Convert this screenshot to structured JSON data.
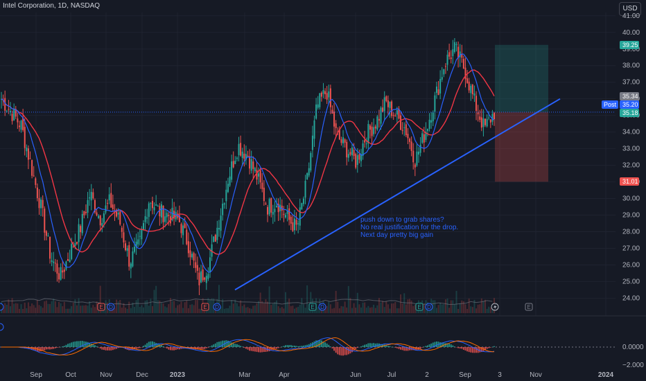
{
  "header": {
    "symbol_title": "Intel Corporation, 1D, NASDAQ",
    "currency_label": "USD"
  },
  "annotation": {
    "lines": [
      "push down to grab shares?",
      "No real justification for the drop.",
      "Next day pretty big gain"
    ]
  },
  "price_tags": {
    "target": "39.25",
    "upper": "35.34",
    "post_label": "Post",
    "post": "35.20",
    "close": "35.18",
    "stop": "31.01"
  },
  "event_markers": [
    {
      "label": "E",
      "kind": "earnings"
    },
    {
      "label": "D",
      "kind": "dividend"
    },
    {
      "label": "E",
      "kind": "earnings"
    },
    {
      "label": "D",
      "kind": "dividend"
    },
    {
      "label": "E",
      "kind": "earnings"
    },
    {
      "label": "D",
      "kind": "dividend"
    },
    {
      "label": "E",
      "kind": "earnings"
    },
    {
      "label": "D",
      "kind": "dividend"
    },
    {
      "label": "E",
      "kind": "earnings-upcoming"
    }
  ],
  "colors": {
    "up": "#26a69a",
    "down": "#ef5350",
    "ma_fast": "#2962ff",
    "ma_slow": "#f23645",
    "trendline": "#2962ff",
    "target_zone": "#26a69a",
    "stop_zone": "#ef5350"
  },
  "chart_data": {
    "type": "candlestick",
    "title": "Intel Corporation, 1D, NASDAQ",
    "y_ticks": [
      "41.00",
      "40.00",
      "39.00",
      "38.00",
      "37.00",
      "36.00",
      "35.00",
      "34.00",
      "33.00",
      "32.00",
      "31.00",
      "30.00",
      "29.00",
      "28.00",
      "27.00",
      "26.00",
      "25.00",
      "24.00"
    ],
    "x_ticks": [
      "Sep",
      "Oct",
      "Nov",
      "Dec",
      "2023",
      "Mar",
      "Apr",
      "Jun",
      "Jul",
      "2",
      "Sep",
      "3",
      "Nov",
      "2024"
    ],
    "ylim": [
      23.6,
      41.2
    ],
    "macd_ticks": [
      "0.0000",
      "−2.000"
    ],
    "trendline": {
      "start": {
        "date": "Feb 2023",
        "price": 24.5
      },
      "end": {
        "date": "Oct 2023",
        "price": 36.0
      }
    },
    "position": {
      "entry": 35.2,
      "target": 39.25,
      "stop": 31.01
    },
    "price_path": [
      [
        "Aug 2022",
        36.0
      ],
      [
        "Aug 2022",
        35.2
      ],
      [
        "Sep 2022",
        34.4
      ],
      [
        "Sep 2022",
        32.0
      ],
      [
        "Sep 2022",
        29.5
      ],
      [
        "Oct 2022",
        26.5
      ],
      [
        "Oct 2022",
        25.3
      ],
      [
        "Oct 2022",
        26.8
      ],
      [
        "Nov 2022",
        28.2
      ],
      [
        "Nov 2022",
        30.3
      ],
      [
        "Nov 2022",
        28.8
      ],
      [
        "Dec 2022",
        29.8
      ],
      [
        "Dec 2022",
        28.6
      ],
      [
        "Dec 2022",
        26.2
      ],
      [
        "Jan 2023",
        27.2
      ],
      [
        "Jan 2023",
        30.0
      ],
      [
        "Jan 2023",
        29.2
      ],
      [
        "Feb 2023",
        29.0
      ],
      [
        "Feb 2023",
        28.7
      ],
      [
        "Feb 2023",
        27.2
      ],
      [
        "Mar 2023",
        25.0
      ],
      [
        "Mar 2023",
        26.0
      ],
      [
        "Mar 2023",
        28.5
      ],
      [
        "Apr 2023",
        31.2
      ],
      [
        "Apr 2023",
        33.2
      ],
      [
        "Apr 2023",
        32.6
      ],
      [
        "Apr 2023",
        31.2
      ],
      [
        "May 2023",
        29.5
      ],
      [
        "May 2023",
        29.8
      ],
      [
        "May 2023",
        28.8
      ],
      [
        "May 2023",
        28.2
      ],
      [
        "Jun 2023",
        31.0
      ],
      [
        "Jun 2023",
        35.5
      ],
      [
        "Jun 2023",
        36.5
      ],
      [
        "Jun 2023",
        33.8
      ],
      [
        "Jul 2023",
        33.0
      ],
      [
        "Jul 2023",
        32.2
      ],
      [
        "Jul 2023",
        33.8
      ],
      [
        "Jul 2023",
        34.6
      ],
      [
        "Aug 2023",
        35.8
      ],
      [
        "Aug 2023",
        35.0
      ],
      [
        "Aug 2023",
        34.2
      ],
      [
        "Aug 2023",
        32.3
      ],
      [
        "Aug 2023",
        34.0
      ],
      [
        "Sep 2023",
        36.0
      ],
      [
        "Sep 2023",
        38.2
      ],
      [
        "Sep 2023",
        39.0
      ],
      [
        "Sep 2023",
        37.8
      ],
      [
        "Sep 2023",
        35.8
      ],
      [
        "Sep 2023",
        34.2
      ],
      [
        "Oct 2023",
        35.18
      ]
    ]
  }
}
